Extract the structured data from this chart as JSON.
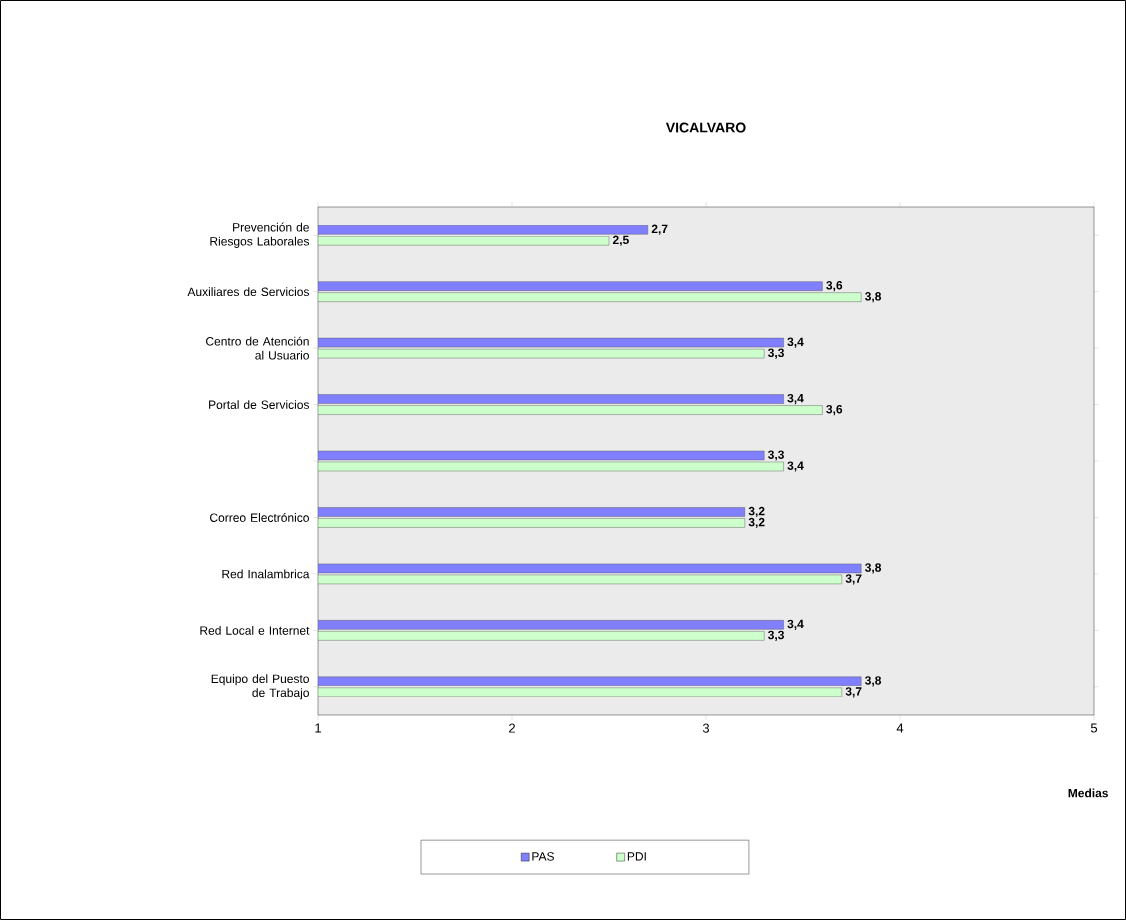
{
  "chart_data": {
    "type": "bar",
    "orientation": "horizontal",
    "title": "VICALVARO",
    "xlabel": "Medias",
    "categories": [
      "Prevención de Riesgos Laborales",
      "Auxiliares de Servicios",
      "Centro de Atención al Usuario",
      "Portal de Servicios",
      null,
      "Correo Electrónico",
      "Red Inalambrica",
      "Red Local e Internet",
      "Equipo del Puesto de Trabajo"
    ],
    "series": [
      {
        "name": "PAS",
        "color": "#8080ff",
        "values": [
          2.7,
          3.6,
          3.4,
          3.4,
          3.3,
          3.2,
          3.8,
          3.4,
          3.8
        ],
        "value_labels": [
          "2,7",
          "3,6",
          "3,4",
          "3,4",
          "3,3",
          "3,2",
          "3,8",
          "3,4",
          "3,8"
        ]
      },
      {
        "name": "PDI",
        "color": "#ccffcc",
        "values": [
          2.5,
          3.8,
          3.3,
          3.6,
          3.4,
          3.2,
          3.7,
          3.3,
          3.7
        ],
        "value_labels": [
          "2,5",
          "3,8",
          "3,3",
          "3,6",
          "3,4",
          "3,2",
          "3,7",
          "3,3",
          "3,7"
        ]
      }
    ],
    "xlim": [
      1,
      5
    ],
    "xticks": [
      1,
      2,
      3,
      4,
      5
    ],
    "grid": false,
    "legend": "bottom"
  }
}
